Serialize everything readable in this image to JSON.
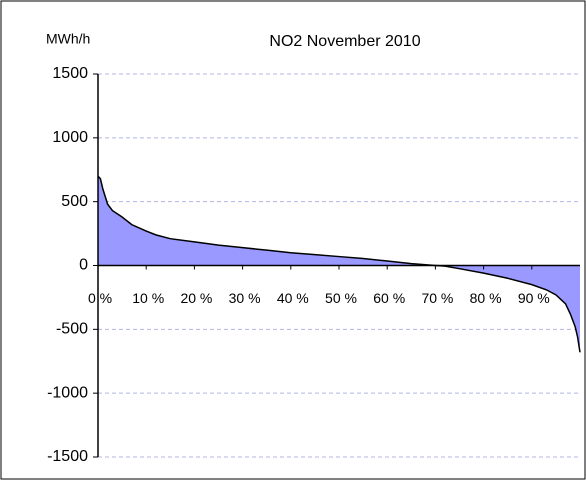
{
  "chart_data": {
    "type": "area",
    "title": "NO2  November 2010",
    "y_axis_label": "MWh/h",
    "x": [
      0,
      0.5,
      1,
      2,
      3,
      5,
      7,
      10,
      12,
      15,
      20,
      25,
      30,
      35,
      40,
      45,
      50,
      55,
      60,
      65,
      70,
      72,
      75,
      80,
      85,
      90,
      93,
      95,
      97,
      98,
      99,
      99.5,
      100
    ],
    "values": [
      700,
      680,
      600,
      480,
      430,
      380,
      320,
      270,
      240,
      210,
      185,
      160,
      140,
      120,
      100,
      85,
      70,
      55,
      35,
      15,
      0,
      -5,
      -25,
      -60,
      -100,
      -150,
      -190,
      -230,
      -300,
      -380,
      -480,
      -560,
      -680
    ],
    "color": "#9999ff",
    "line_color": "#000000",
    "xlim": [
      0,
      100
    ],
    "xticks": [
      {
        "value": 0,
        "label": "0 %"
      },
      {
        "value": 10,
        "label": "10 %"
      },
      {
        "value": 20,
        "label": "20 %"
      },
      {
        "value": 30,
        "label": "30 %"
      },
      {
        "value": 40,
        "label": "40 %"
      },
      {
        "value": 50,
        "label": "50 %"
      },
      {
        "value": 60,
        "label": "60 %"
      },
      {
        "value": 70,
        "label": "70 %"
      },
      {
        "value": 80,
        "label": "80 %"
      },
      {
        "value": 90,
        "label": "90 %"
      }
    ],
    "ylim": [
      -1500,
      1500
    ],
    "yticks": [
      -1500,
      -1000,
      -500,
      0,
      500,
      1000,
      1500
    ],
    "grid": true
  }
}
